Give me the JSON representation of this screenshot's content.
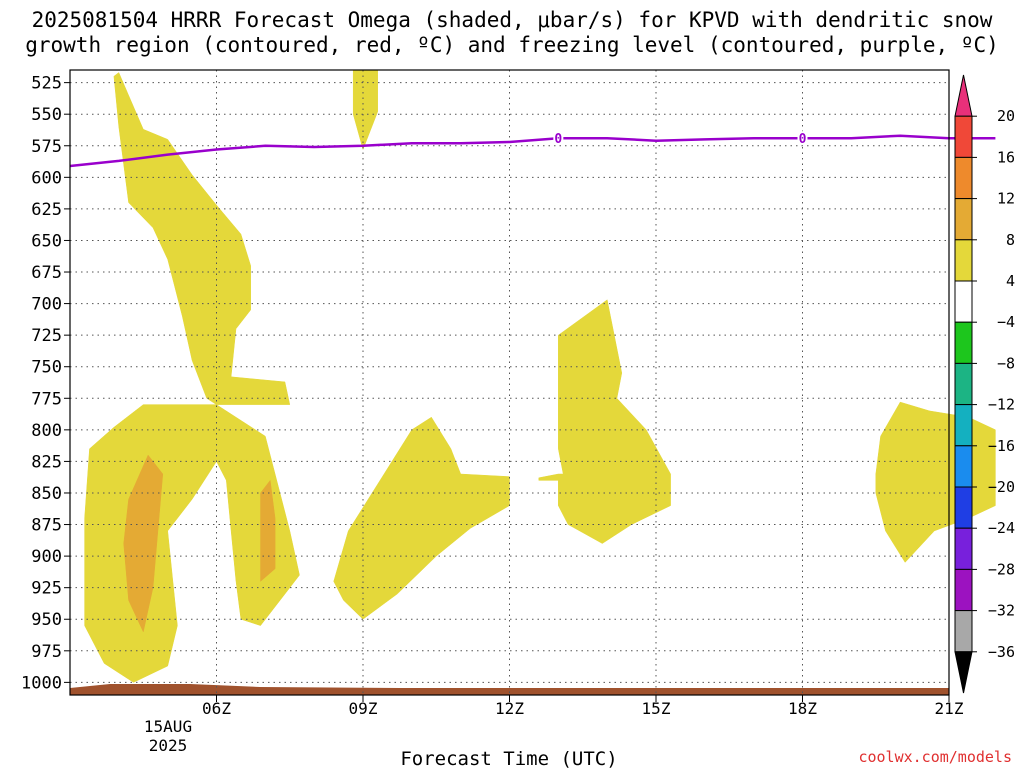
{
  "header": {
    "title_line1": "2025081504 HRRR Forecast Omega (shaded, μbar/s) for KPVD with dendritic snow",
    "title_line2": "growth region (contoured, red, ºC) and freezing level (contoured, purple, ºC)"
  },
  "footer": {
    "credit": "coolwx.com/models"
  },
  "chart_data": {
    "type": "contour",
    "xlabel": "Forecast Time (UTC)",
    "x_ticks": [
      "06Z",
      "09Z",
      "12Z",
      "15Z",
      "18Z",
      "21Z"
    ],
    "x_first_tick_date": [
      "15AUG",
      "2025"
    ],
    "x_range_hours_utc": [
      3.0,
      21.0
    ],
    "y_ticks": [
      525,
      550,
      575,
      600,
      625,
      650,
      675,
      700,
      725,
      750,
      775,
      800,
      825,
      850,
      875,
      900,
      925,
      950,
      975,
      1000
    ],
    "y_unit": "hPa",
    "y_range": [
      515,
      1010
    ],
    "grid": true,
    "colorbar": {
      "labels": [
        "20",
        "16",
        "12",
        "8",
        "4",
        "-4",
        "-8",
        "-12",
        "-16",
        "-20",
        "-24",
        "-28",
        "-32",
        "-36"
      ],
      "colors": [
        "#e8307a",
        "#f04838",
        "#ee8a2c",
        "#e4aa34",
        "#e4d83a",
        "#ffffff",
        "#1dc61d",
        "#1cb484",
        "#14b0c0",
        "#1a8cee",
        "#1f3ee4",
        "#7820dc",
        "#9c12c0",
        "#a8a8a8",
        "#000000"
      ]
    },
    "freezing_level": {
      "label": "0",
      "color": "#9900cc",
      "label_points": [
        {
          "hour": 13.0,
          "pressure": 569
        },
        {
          "hour": 18.0,
          "pressure": 569
        }
      ],
      "points": [
        {
          "hour": 3.0,
          "pressure": 591
        },
        {
          "hour": 4.0,
          "pressure": 587
        },
        {
          "hour": 5.0,
          "pressure": 582
        },
        {
          "hour": 6.0,
          "pressure": 578
        },
        {
          "hour": 7.0,
          "pressure": 575
        },
        {
          "hour": 8.0,
          "pressure": 576
        },
        {
          "hour": 9.0,
          "pressure": 575
        },
        {
          "hour": 10.0,
          "pressure": 573
        },
        {
          "hour": 11.0,
          "pressure": 573
        },
        {
          "hour": 12.0,
          "pressure": 572
        },
        {
          "hour": 13.0,
          "pressure": 569
        },
        {
          "hour": 14.0,
          "pressure": 569
        },
        {
          "hour": 15.0,
          "pressure": 571
        },
        {
          "hour": 16.0,
          "pressure": 570
        },
        {
          "hour": 17.0,
          "pressure": 569
        },
        {
          "hour": 18.0,
          "pressure": 569
        },
        {
          "hour": 19.0,
          "pressure": 569
        },
        {
          "hour": 20.0,
          "pressure": 567
        },
        {
          "hour": 21.0,
          "pressure": 569
        },
        {
          "hour": 21.95,
          "pressure": 569
        }
      ]
    },
    "omega_regions": [
      {
        "level": "4-8",
        "color": "#e4d83a",
        "points": [
          [
            4.0,
            517
          ],
          [
            4.2,
            535
          ],
          [
            4.5,
            562
          ],
          [
            5.0,
            570
          ],
          [
            5.5,
            598
          ],
          [
            6.0,
            622
          ],
          [
            6.5,
            645
          ],
          [
            6.7,
            670
          ],
          [
            6.7,
            705
          ],
          [
            6.4,
            720
          ],
          [
            6.3,
            758
          ],
          [
            7.4,
            762
          ],
          [
            7.5,
            780
          ],
          [
            6.3,
            780
          ],
          [
            4.8,
            780
          ],
          [
            4.5,
            780
          ],
          [
            3.9,
            798
          ],
          [
            3.4,
            815
          ],
          [
            3.3,
            870
          ],
          [
            3.3,
            955
          ],
          [
            3.7,
            985
          ],
          [
            4.3,
            1000
          ],
          [
            5.0,
            987
          ],
          [
            5.2,
            955
          ],
          [
            5.0,
            880
          ],
          [
            5.5,
            855
          ],
          [
            6.0,
            825
          ],
          [
            6.2,
            840
          ],
          [
            6.3,
            880
          ],
          [
            6.4,
            920
          ],
          [
            6.5,
            950
          ],
          [
            6.9,
            955
          ],
          [
            7.5,
            925
          ],
          [
            7.7,
            915
          ],
          [
            7.5,
            880
          ],
          [
            7.3,
            850
          ],
          [
            7.0,
            805
          ],
          [
            5.8,
            775
          ],
          [
            5.5,
            745
          ],
          [
            5.3,
            710
          ],
          [
            5.0,
            665
          ],
          [
            4.7,
            640
          ],
          [
            4.2,
            620
          ],
          [
            4.1,
            590
          ],
          [
            4.0,
            560
          ],
          [
            3.9,
            520
          ]
        ]
      },
      {
        "level": "4-8",
        "color": "#e4d83a",
        "points": [
          [
            8.8,
            515
          ],
          [
            9.3,
            515
          ],
          [
            9.3,
            548
          ],
          [
            9.0,
            578
          ],
          [
            8.8,
            550
          ]
        ]
      },
      {
        "level": "4-8",
        "color": "#e4d83a",
        "points": [
          [
            8.4,
            920
          ],
          [
            8.7,
            880
          ],
          [
            9.3,
            843
          ],
          [
            10.0,
            800
          ],
          [
            10.4,
            790
          ],
          [
            10.8,
            815
          ],
          [
            11.0,
            835
          ],
          [
            12.0,
            837
          ],
          [
            12.0,
            860
          ],
          [
            11.2,
            878
          ],
          [
            10.5,
            900
          ],
          [
            9.7,
            930
          ],
          [
            9.0,
            950
          ],
          [
            8.6,
            935
          ]
        ]
      },
      {
        "level": "4-8",
        "color": "#e4d83a",
        "points": [
          [
            12.6,
            838
          ],
          [
            13.0,
            835
          ],
          [
            13.1,
            835
          ],
          [
            13.0,
            815
          ],
          [
            13.0,
            725
          ],
          [
            14.0,
            697
          ],
          [
            14.3,
            755
          ],
          [
            14.2,
            775
          ],
          [
            14.8,
            800
          ],
          [
            15.3,
            835
          ],
          [
            15.3,
            860
          ],
          [
            14.5,
            875
          ],
          [
            13.9,
            890
          ],
          [
            13.2,
            875
          ],
          [
            13.0,
            860
          ],
          [
            13.0,
            840
          ],
          [
            12.6,
            840
          ]
        ]
      },
      {
        "level": "4-8",
        "color": "#e4d83a",
        "points": [
          [
            19.5,
            835
          ],
          [
            19.6,
            805
          ],
          [
            20.0,
            778
          ],
          [
            20.6,
            785
          ],
          [
            21.4,
            790
          ],
          [
            21.95,
            800
          ],
          [
            21.95,
            860
          ],
          [
            21.4,
            870
          ],
          [
            20.7,
            880
          ],
          [
            20.1,
            905
          ],
          [
            19.7,
            880
          ],
          [
            19.5,
            850
          ]
        ]
      },
      {
        "level": "8-12",
        "color": "#e4aa34",
        "points": [
          [
            4.2,
            855
          ],
          [
            4.6,
            820
          ],
          [
            4.9,
            835
          ],
          [
            4.8,
            880
          ],
          [
            4.7,
            925
          ],
          [
            4.5,
            960
          ],
          [
            4.2,
            935
          ],
          [
            4.1,
            890
          ]
        ]
      },
      {
        "level": "8-12",
        "color": "#e4aa34",
        "points": [
          [
            6.9,
            850
          ],
          [
            7.1,
            840
          ],
          [
            7.2,
            870
          ],
          [
            7.2,
            910
          ],
          [
            6.9,
            920
          ],
          [
            6.9,
            890
          ]
        ]
      }
    ]
  }
}
